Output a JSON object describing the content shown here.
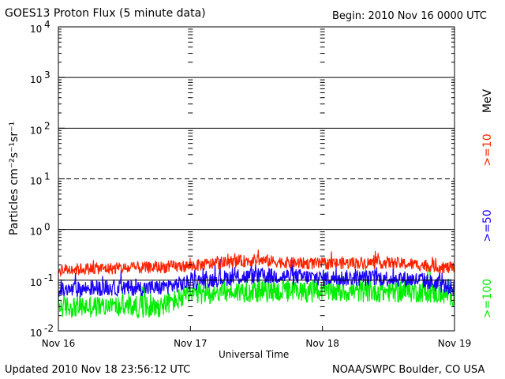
{
  "chart_data": {
    "type": "line",
    "title": "GOES13 Proton Flux (5 minute data)",
    "begin": "Begin: 2010 Nov 16 0000 UTC",
    "xlabel": "Universal Time",
    "ylabel": "Particles cm⁻²s⁻¹sr⁻¹",
    "unit": "MeV",
    "yscale": "log",
    "ylim": [
      0.01,
      10000
    ],
    "xlim": [
      0,
      3
    ],
    "x_ticks": [
      "Nov 16",
      "Nov 17",
      "Nov 18",
      "Nov 19"
    ],
    "y_ticks": [
      {
        "base": "10",
        "exp": "-2"
      },
      {
        "base": "10",
        "exp": "-1"
      },
      {
        "base": "10",
        "exp": "0"
      },
      {
        "base": "10",
        "exp": "1"
      },
      {
        "base": "10",
        "exp": "2"
      },
      {
        "base": "10",
        "exp": "3"
      },
      {
        "base": "10",
        "exp": "4"
      }
    ],
    "grid": "horizontal solid at 10^-1, 10^0, 10^2, 10^3; dashed at 10^1",
    "series": [
      {
        "name": ">=10",
        "color": "#ff2200",
        "points": [
          [
            0.0,
            0.16
          ],
          [
            0.25,
            0.17
          ],
          [
            0.5,
            0.17
          ],
          [
            0.75,
            0.18
          ],
          [
            1.0,
            0.19
          ],
          [
            1.25,
            0.22
          ],
          [
            1.5,
            0.25
          ],
          [
            1.75,
            0.22
          ],
          [
            2.0,
            0.21
          ],
          [
            2.25,
            0.22
          ],
          [
            2.5,
            0.22
          ],
          [
            2.75,
            0.2
          ],
          [
            3.0,
            0.17
          ]
        ]
      },
      {
        "name": ">=50",
        "color": "#1a00ff",
        "points": [
          [
            0.0,
            0.06
          ],
          [
            0.25,
            0.07
          ],
          [
            0.5,
            0.07
          ],
          [
            0.75,
            0.07
          ],
          [
            1.0,
            0.09
          ],
          [
            1.25,
            0.11
          ],
          [
            1.5,
            0.12
          ],
          [
            1.75,
            0.12
          ],
          [
            2.0,
            0.11
          ],
          [
            2.25,
            0.11
          ],
          [
            2.5,
            0.11
          ],
          [
            2.75,
            0.1
          ],
          [
            3.0,
            0.07
          ]
        ]
      },
      {
        "name": ">=100",
        "color": "#00ee00",
        "points": [
          [
            0.0,
            0.03
          ],
          [
            0.25,
            0.03
          ],
          [
            0.5,
            0.03
          ],
          [
            0.75,
            0.03
          ],
          [
            1.0,
            0.05
          ],
          [
            1.25,
            0.06
          ],
          [
            1.5,
            0.06
          ],
          [
            1.75,
            0.06
          ],
          [
            2.0,
            0.06
          ],
          [
            2.25,
            0.06
          ],
          [
            2.5,
            0.06
          ],
          [
            2.75,
            0.06
          ],
          [
            3.0,
            0.05
          ]
        ]
      }
    ]
  },
  "footer": {
    "updated": "Updated 2010 Nov 18 23:56:12 UTC",
    "source": "NOAA/SWPC Boulder, CO USA"
  }
}
